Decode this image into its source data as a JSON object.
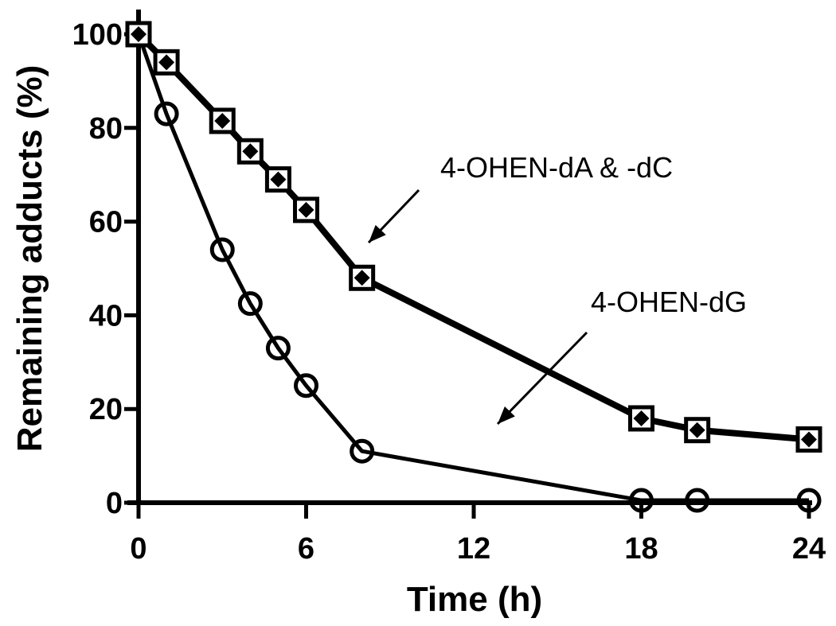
{
  "chart_data": {
    "type": "line",
    "title": "",
    "xlabel": "Time (h)",
    "ylabel": "Remaining adducts (%)",
    "xlim": [
      0,
      24
    ],
    "ylim": [
      0,
      100
    ],
    "xticks": [
      0,
      6,
      12,
      18,
      24
    ],
    "yticks": [
      0,
      20,
      40,
      60,
      80,
      100
    ],
    "grid": false,
    "legend": "none (inline arrow annotations)",
    "series": [
      {
        "name": "4-OHEN-dA",
        "marker": "open-square",
        "x": [
          0,
          1,
          3,
          4,
          5,
          6,
          8,
          18,
          20,
          24
        ],
        "values": [
          100,
          94,
          81.5,
          75,
          69,
          62.5,
          48,
          18,
          15.5,
          13.5
        ]
      },
      {
        "name": "4-OHEN-dC",
        "marker": "filled-diamond",
        "x": [
          0,
          1,
          3,
          4,
          5,
          6,
          8,
          18,
          20,
          24
        ],
        "values": [
          100,
          94,
          81.5,
          75,
          69,
          62.5,
          48,
          18,
          15.5,
          13.5
        ]
      },
      {
        "name": "4-OHEN-dG",
        "marker": "open-circle",
        "x": [
          0,
          1,
          3,
          4,
          5,
          6,
          8,
          18,
          20,
          24
        ],
        "values": [
          100,
          83,
          54,
          42.5,
          33,
          25,
          11,
          0.5,
          0.5,
          0.5
        ]
      }
    ],
    "annotations": [
      {
        "text": "4-OHEN-dA & -dC",
        "arrow_to": [
          8.2,
          55
        ]
      },
      {
        "text": "4-OHEN-dG",
        "arrow_to": [
          13,
          17
        ]
      }
    ]
  },
  "labels": {
    "xlabel": "Time (h)",
    "ylabel": "Remaining adducts (%)",
    "annot1": "4-OHEN-dA & -dC",
    "annot2": "4-OHEN-dG"
  }
}
